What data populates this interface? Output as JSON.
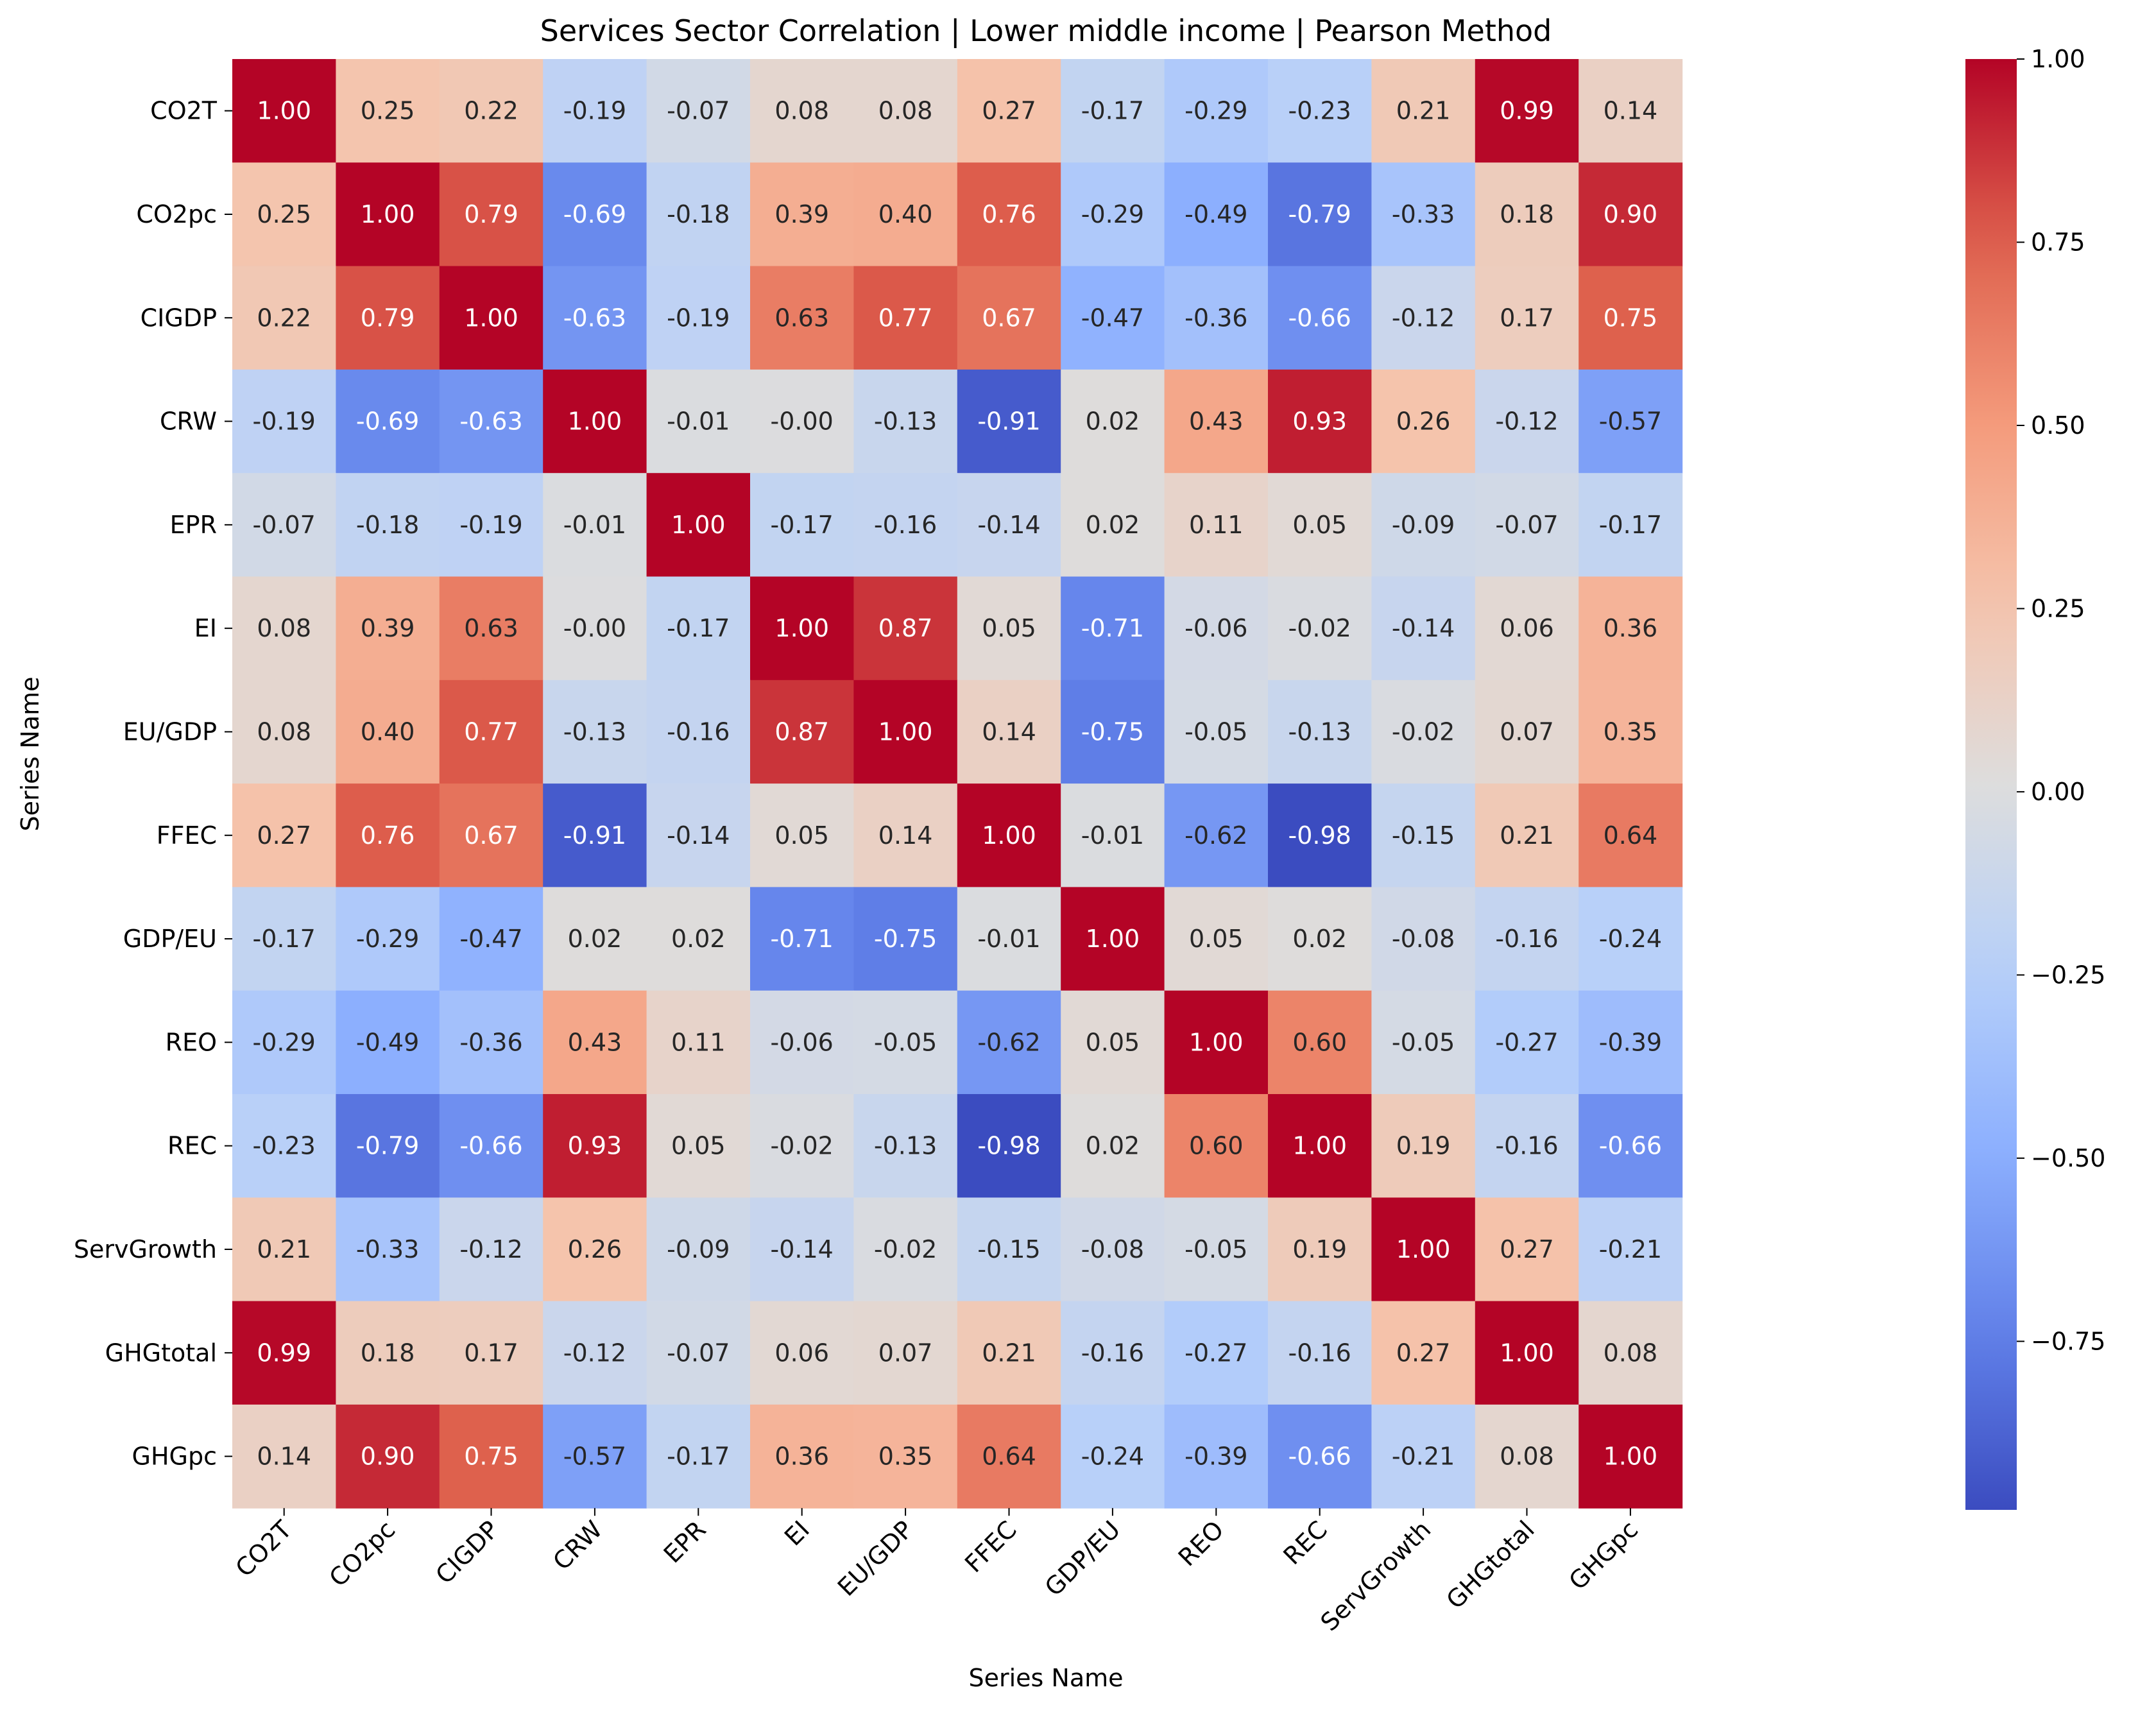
{
  "chart_data": {
    "type": "heatmap",
    "title": "Services Sector Correlation | Lower middle income | Pearson Method",
    "xlabel": "Series Name",
    "ylabel": "Series Name",
    "x_categories": [
      "CO2T",
      "CO2pc",
      "CIGDP",
      "CRW",
      "EPR",
      "EI",
      "EU/GDP",
      "FFEC",
      "GDP/EU",
      "REO",
      "REC",
      "ServGrowth",
      "GHGtotal",
      "GHGpc"
    ],
    "y_categories": [
      "CO2T",
      "CO2pc",
      "CIGDP",
      "CRW",
      "EPR",
      "EI",
      "EU/GDP",
      "FFEC",
      "GDP/EU",
      "REO",
      "REC",
      "ServGrowth",
      "GHGtotal",
      "GHGpc"
    ],
    "values": [
      [
        1.0,
        0.25,
        0.22,
        -0.19,
        -0.07,
        0.08,
        0.08,
        0.27,
        -0.17,
        -0.29,
        -0.23,
        0.21,
        0.99,
        0.14
      ],
      [
        0.25,
        1.0,
        0.79,
        -0.69,
        -0.18,
        0.39,
        0.4,
        0.76,
        -0.29,
        -0.49,
        -0.79,
        -0.33,
        0.18,
        0.9
      ],
      [
        0.22,
        0.79,
        1.0,
        -0.63,
        -0.19,
        0.63,
        0.77,
        0.67,
        -0.47,
        -0.36,
        -0.66,
        -0.12,
        0.17,
        0.75
      ],
      [
        -0.19,
        -0.69,
        -0.63,
        1.0,
        -0.01,
        -0.0,
        -0.13,
        -0.91,
        0.02,
        0.43,
        0.93,
        0.26,
        -0.12,
        -0.57
      ],
      [
        -0.07,
        -0.18,
        -0.19,
        -0.01,
        1.0,
        -0.17,
        -0.16,
        -0.14,
        0.02,
        0.11,
        0.05,
        -0.09,
        -0.07,
        -0.17
      ],
      [
        0.08,
        0.39,
        0.63,
        -0.0,
        -0.17,
        1.0,
        0.87,
        0.05,
        -0.71,
        -0.06,
        -0.02,
        -0.14,
        0.06,
        0.36
      ],
      [
        0.08,
        0.4,
        0.77,
        -0.13,
        -0.16,
        0.87,
        1.0,
        0.14,
        -0.75,
        -0.05,
        -0.13,
        -0.02,
        0.07,
        0.35
      ],
      [
        0.27,
        0.76,
        0.67,
        -0.91,
        -0.14,
        0.05,
        0.14,
        1.0,
        -0.01,
        -0.62,
        -0.98,
        -0.15,
        0.21,
        0.64
      ],
      [
        -0.17,
        -0.29,
        -0.47,
        0.02,
        0.02,
        -0.71,
        -0.75,
        -0.01,
        1.0,
        0.05,
        0.02,
        -0.08,
        -0.16,
        -0.24
      ],
      [
        -0.29,
        -0.49,
        -0.36,
        0.43,
        0.11,
        -0.06,
        -0.05,
        -0.62,
        0.05,
        1.0,
        0.6,
        -0.05,
        -0.27,
        -0.39
      ],
      [
        -0.23,
        -0.79,
        -0.66,
        0.93,
        0.05,
        -0.02,
        -0.13,
        -0.98,
        0.02,
        0.6,
        1.0,
        0.19,
        -0.16,
        -0.66
      ],
      [
        0.21,
        -0.33,
        -0.12,
        0.26,
        -0.09,
        -0.14,
        -0.02,
        -0.15,
        -0.08,
        -0.05,
        0.19,
        1.0,
        0.27,
        -0.21
      ],
      [
        0.99,
        0.18,
        0.17,
        -0.12,
        -0.07,
        0.06,
        0.07,
        0.21,
        -0.16,
        -0.27,
        -0.16,
        0.27,
        1.0,
        0.08
      ],
      [
        0.14,
        0.9,
        0.75,
        -0.57,
        -0.17,
        0.36,
        0.35,
        0.64,
        -0.24,
        -0.39,
        -0.66,
        -0.21,
        0.08,
        1.0
      ]
    ],
    "colormap": "coolwarm",
    "vmin": -0.98,
    "vmax": 1.0,
    "colorbar_ticks": [
      1.0,
      0.75,
      0.5,
      0.25,
      0.0,
      -0.25,
      -0.5,
      -0.75
    ],
    "colorbar_tick_labels": [
      "1.00",
      "0.75",
      "0.50",
      "0.25",
      "0.00",
      "−0.25",
      "−0.50",
      "−0.75"
    ],
    "grid": false
  }
}
